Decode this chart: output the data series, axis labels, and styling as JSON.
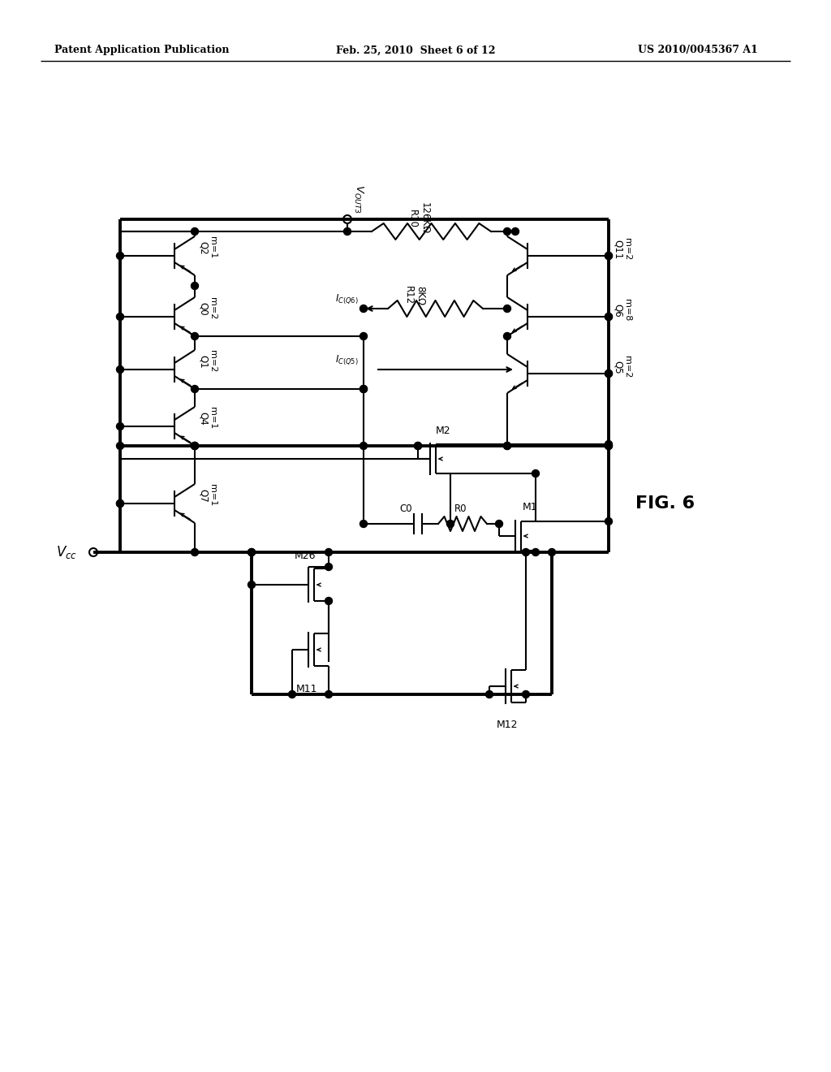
{
  "header_left": "Patent Application Publication",
  "header_center": "Feb. 25, 2010  Sheet 6 of 12",
  "header_right": "US 2010/0045367 A1",
  "fig_label": "FIG. 6",
  "bg_color": "#ffffff",
  "line_color": "#000000",
  "lw": 1.5,
  "tlw": 2.8
}
